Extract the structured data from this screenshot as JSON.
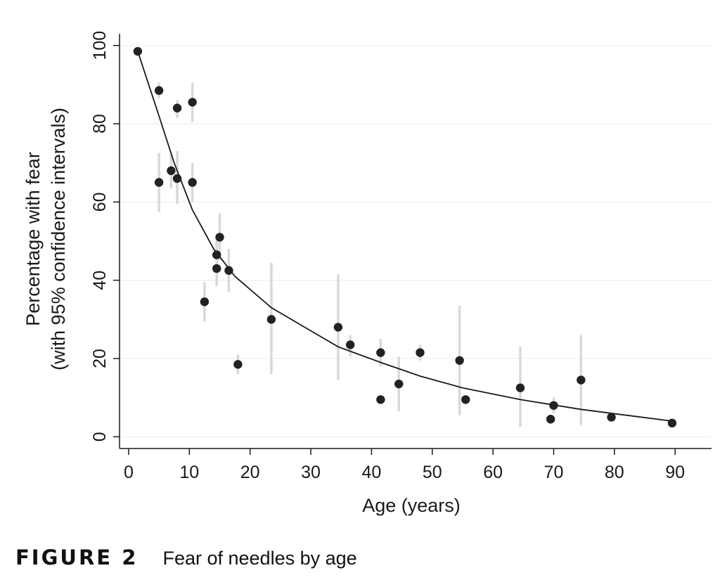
{
  "chart_data": {
    "type": "scatter",
    "xlabel": "Age (years)",
    "ylabel_line1": "Percentage with fear",
    "ylabel_line2": "(with 95% confidence intervals)",
    "xlim": [
      -1.5,
      96
    ],
    "ylim": [
      -3,
      103
    ],
    "xticks": [
      0,
      10,
      20,
      30,
      40,
      50,
      60,
      70,
      80,
      90
    ],
    "yticks": [
      0,
      20,
      40,
      60,
      80,
      100
    ],
    "grid": true,
    "points": [
      {
        "x": 1.5,
        "y": 98.5,
        "lo": null,
        "hi": null
      },
      {
        "x": 5,
        "y": 88.5,
        "lo": 86.5,
        "hi": 90.5
      },
      {
        "x": 5,
        "y": 65,
        "lo": 57.5,
        "hi": 72.5
      },
      {
        "x": 7,
        "y": 68,
        "lo": 63.5,
        "hi": 72.5
      },
      {
        "x": 8,
        "y": 84,
        "lo": 81.5,
        "hi": 86
      },
      {
        "x": 8,
        "y": 66,
        "lo": 59.5,
        "hi": 73
      },
      {
        "x": 10.5,
        "y": 85.5,
        "lo": 80.5,
        "hi": 90.5
      },
      {
        "x": 10.5,
        "y": 65,
        "lo": 60,
        "hi": 70
      },
      {
        "x": 12.5,
        "y": 34.5,
        "lo": 29.5,
        "hi": 39.5
      },
      {
        "x": 14.5,
        "y": 46.5,
        "lo": 42,
        "hi": 51
      },
      {
        "x": 14.5,
        "y": 43,
        "lo": 38.5,
        "hi": 47.5
      },
      {
        "x": 15,
        "y": 51,
        "lo": 45,
        "hi": 57
      },
      {
        "x": 16.5,
        "y": 42.5,
        "lo": 37,
        "hi": 48
      },
      {
        "x": 18,
        "y": 18.5,
        "lo": 16,
        "hi": 21
      },
      {
        "x": 23.5,
        "y": 30,
        "lo": 16,
        "hi": 44.5
      },
      {
        "x": 34.5,
        "y": 28,
        "lo": 14.5,
        "hi": 41.5
      },
      {
        "x": 36.5,
        "y": 23.5,
        "lo": 20.5,
        "hi": 26
      },
      {
        "x": 41.5,
        "y": 21.5,
        "lo": 18,
        "hi": 25
      },
      {
        "x": 41.5,
        "y": 9.5,
        "lo": null,
        "hi": null
      },
      {
        "x": 44.5,
        "y": 13.5,
        "lo": 6.5,
        "hi": 20.5
      },
      {
        "x": 48,
        "y": 21.5,
        "lo": 19.5,
        "hi": 23.5
      },
      {
        "x": 54.5,
        "y": 19.5,
        "lo": 5.5,
        "hi": 33.5
      },
      {
        "x": 55.5,
        "y": 9.5,
        "lo": null,
        "hi": null
      },
      {
        "x": 64.5,
        "y": 12.5,
        "lo": 2.5,
        "hi": 23
      },
      {
        "x": 69.5,
        "y": 4.5,
        "lo": null,
        "hi": null
      },
      {
        "x": 70,
        "y": 8,
        "lo": 6,
        "hi": 10
      },
      {
        "x": 74.5,
        "y": 14.5,
        "lo": 3,
        "hi": 26
      },
      {
        "x": 79.5,
        "y": 5,
        "lo": null,
        "hi": null
      },
      {
        "x": 89.5,
        "y": 3.5,
        "lo": null,
        "hi": null
      }
    ],
    "fit_line": [
      {
        "x": 1.5,
        "y": 98.5
      },
      {
        "x": 5,
        "y": 82
      },
      {
        "x": 7.5,
        "y": 70
      },
      {
        "x": 10.5,
        "y": 58
      },
      {
        "x": 14,
        "y": 48
      },
      {
        "x": 17.5,
        "y": 41
      },
      {
        "x": 23.5,
        "y": 33
      },
      {
        "x": 29,
        "y": 28
      },
      {
        "x": 34.5,
        "y": 23
      },
      {
        "x": 41.5,
        "y": 19
      },
      {
        "x": 48,
        "y": 15.5
      },
      {
        "x": 55,
        "y": 12.5
      },
      {
        "x": 64.5,
        "y": 9.5
      },
      {
        "x": 74.5,
        "y": 7
      },
      {
        "x": 82,
        "y": 5.5
      },
      {
        "x": 89.5,
        "y": 4
      }
    ],
    "colors": {
      "marker": "#222222",
      "ci": "#d9d9d9",
      "line": "#1a1a1a",
      "grid": "#eeeeee",
      "axis": "#1a1a1a"
    }
  },
  "caption": {
    "label": "FIGURE 2",
    "text": "Fear of needles by age"
  }
}
